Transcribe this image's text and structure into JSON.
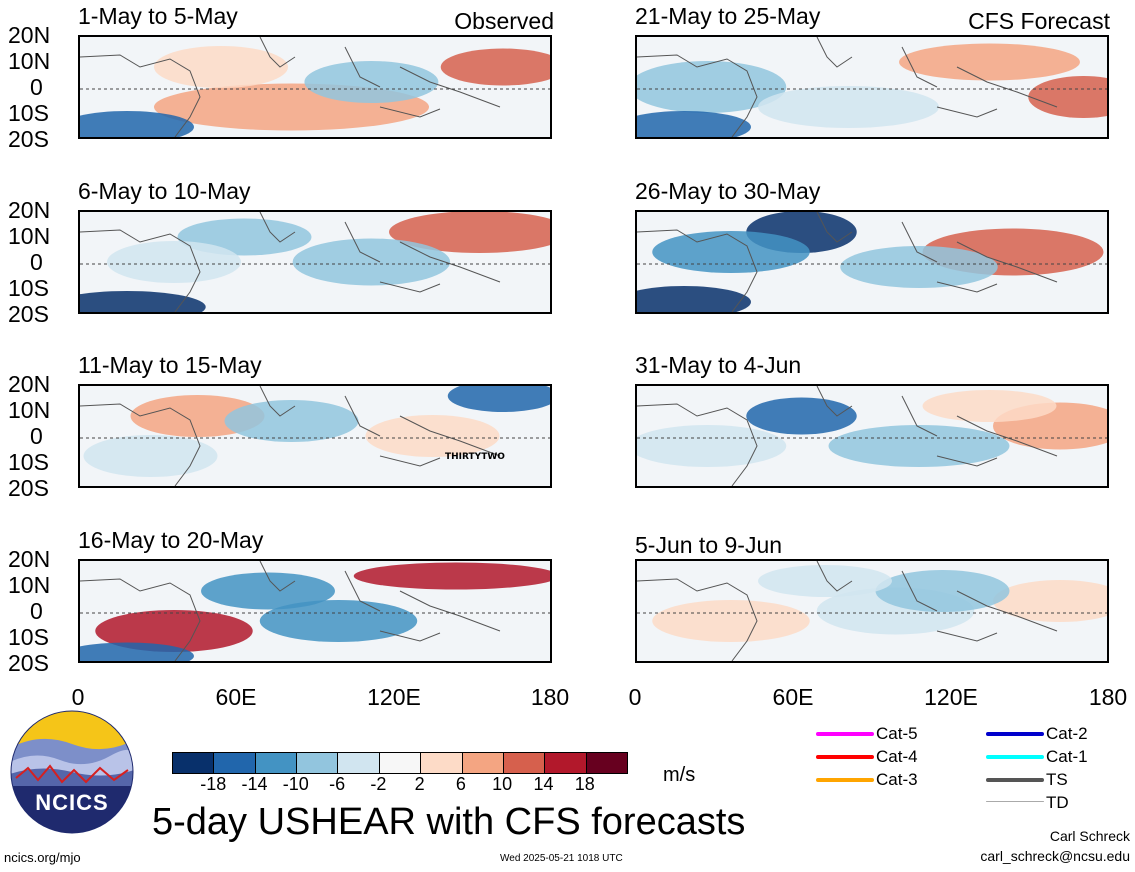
{
  "header": {
    "observed_label": "Observed",
    "forecast_label": "CFS Forecast"
  },
  "lat_labels": [
    "20N",
    "10N",
    "0",
    "10S",
    "20S"
  ],
  "lon_labels": [
    "0",
    "60E",
    "120E",
    "180"
  ],
  "panels": {
    "observed": [
      {
        "title": "1-May to 5-May"
      },
      {
        "title": "6-May to 10-May"
      },
      {
        "title": "11-May to 15-May",
        "storm_label": "THIRTYTWO"
      },
      {
        "title": "16-May to 20-May"
      }
    ],
    "forecast": [
      {
        "title": "21-May to 25-May"
      },
      {
        "title": "26-May to 30-May"
      },
      {
        "title": "31-May to 4-Jun"
      },
      {
        "title": "5-Jun to 9-Jun"
      }
    ]
  },
  "colorbar": {
    "colors": [
      "#08306b",
      "#2166ac",
      "#4393c3",
      "#92c5de",
      "#d1e5f0",
      "#f7f7f7",
      "#fddbc7",
      "#f4a582",
      "#d6604d",
      "#b2182b",
      "#67001f"
    ],
    "labels": [
      "-18",
      "-14",
      "-10",
      "-6",
      "-2",
      "2",
      "6",
      "10",
      "14",
      "18"
    ],
    "unit": "m/s"
  },
  "legend": [
    {
      "label": "Cat-5",
      "color": "#ff00ff"
    },
    {
      "label": "Cat-4",
      "color": "#ff0000"
    },
    {
      "label": "Cat-3",
      "color": "#ffa500"
    },
    {
      "label": "Cat-2",
      "color": "#0000cc"
    },
    {
      "label": "Cat-1",
      "color": "#00ffff"
    },
    {
      "label": "TS",
      "color": "#555555"
    },
    {
      "label": "TD",
      "color": "#aaaaaa"
    }
  ],
  "logo": {
    "text": "NCICS"
  },
  "main_title": "5-day USHEAR with CFS forecasts",
  "author": {
    "name": "Carl Schreck",
    "email": "carl_schreck@ncsu.edu"
  },
  "footer": {
    "url": "ncics.org/mjo",
    "timestamp": "Wed 2025-05-21 1018 UTC"
  }
}
